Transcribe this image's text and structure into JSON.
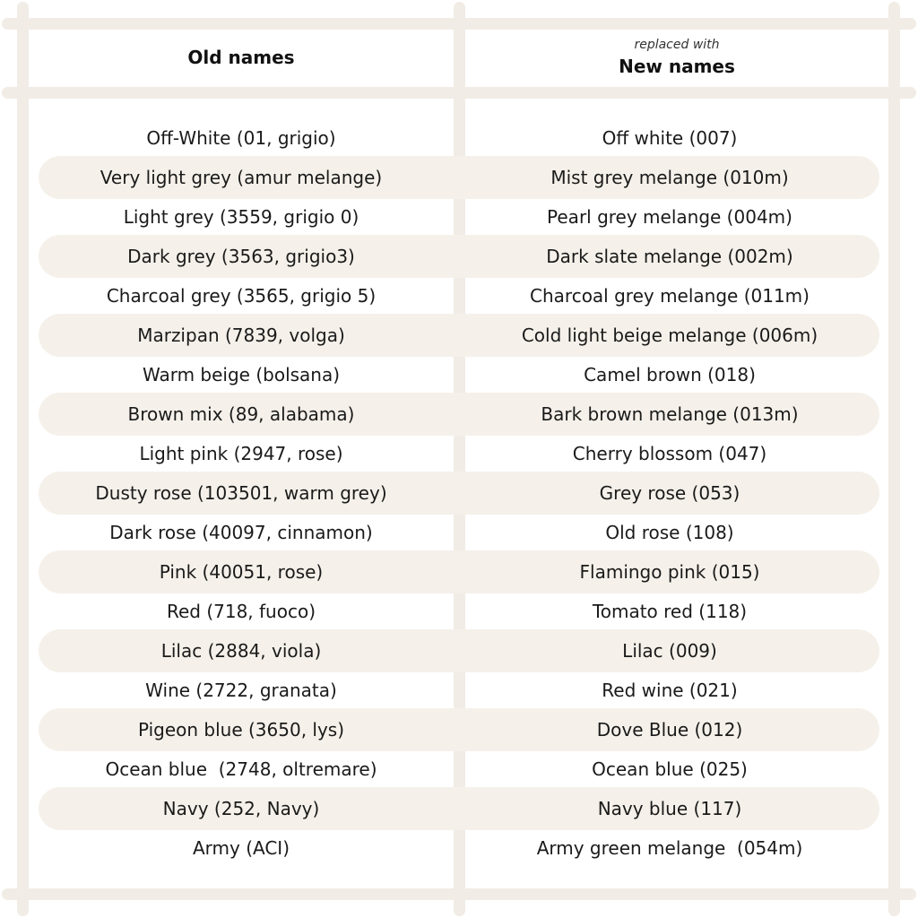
{
  "header": {
    "old_title": "Old names",
    "new_note": "replaced with",
    "new_title": "New names"
  },
  "rows": [
    {
      "old": "Off-White (01, grigio)",
      "new": "Off white (007)"
    },
    {
      "old": "Very light grey (amur melange)",
      "new": "Mist grey melange (010m)"
    },
    {
      "old": "Light grey (3559, grigio 0)",
      "new": "Pearl grey melange (004m)"
    },
    {
      "old": "Dark grey (3563, grigio3)",
      "new": "Dark slate melange (002m)"
    },
    {
      "old": "Charcoal grey (3565, grigio 5)",
      "new": "Charcoal grey melange (011m)"
    },
    {
      "old": "Marzipan (7839, volga)",
      "new": "Cold light beige melange (006m)"
    },
    {
      "old": "Warm beige (bolsana)",
      "new": "Camel brown (018)"
    },
    {
      "old": "Brown mix (89, alabama)",
      "new": "Bark brown melange (013m)"
    },
    {
      "old": "Light pink (2947, rose)",
      "new": "Cherry blossom (047)"
    },
    {
      "old": "Dusty rose (103501, warm grey)",
      "new": "Grey rose (053)"
    },
    {
      "old": "Dark rose (40097, cinnamon)",
      "new": "Old rose (108)"
    },
    {
      "old": "Pink (40051, rose)",
      "new": "Flamingo pink (015)"
    },
    {
      "old": "Red (718, fuoco)",
      "new": "Tomato red (118)"
    },
    {
      "old": "Lilac (2884, viola)",
      "new": "Lilac (009)"
    },
    {
      "old": "Wine (2722, granata)",
      "new": "Red wine (021)"
    },
    {
      "old": "Pigeon blue (3650, lys)",
      "new": "Dove Blue (012)"
    },
    {
      "old": "Ocean blue  (2748, oltremare)",
      "new": "Ocean blue (025)"
    },
    {
      "old": "Navy (252, Navy)",
      "new": "Navy blue (117)"
    },
    {
      "old": "Army (ACI)",
      "new": "Army green melange  (054m)"
    }
  ],
  "colors": {
    "frame": "#f1ece5",
    "stripe": "#f5f1ea",
    "text": "#1a1a1a"
  }
}
